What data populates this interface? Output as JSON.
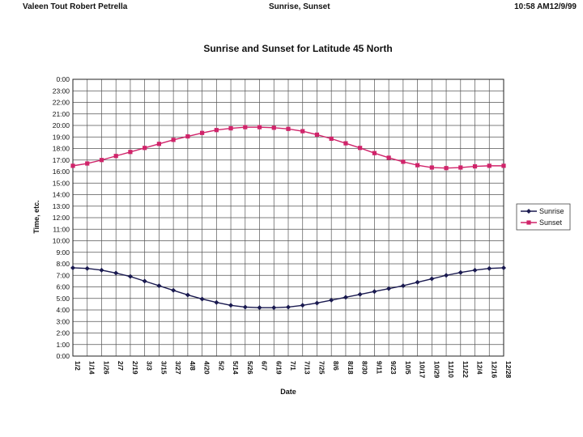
{
  "header": {
    "left": "Valeen Tout Robert Petrella",
    "center": "Sunrise, Sunset",
    "right": "10:58 AM12/9/99"
  },
  "chart_data": {
    "type": "line",
    "title": "Sunrise and Sunset for Latitude 45 North",
    "xlabel": "Date",
    "ylabel": "Time, etc.",
    "ylim": [
      0,
      24
    ],
    "yticks": [
      "0:00",
      "1:00",
      "2:00",
      "3:00",
      "4:00",
      "5:00",
      "6:00",
      "7:00",
      "8:00",
      "9:00",
      "10:00",
      "11:00",
      "12:00",
      "13:00",
      "14:00",
      "15:00",
      "16:00",
      "17:00",
      "18:00",
      "19:00",
      "20:00",
      "21:00",
      "22:00",
      "23:00",
      "0:00"
    ],
    "categories": [
      "1/2",
      "1/14",
      "1/26",
      "2/7",
      "2/19",
      "3/3",
      "3/15",
      "3/27",
      "4/8",
      "4/20",
      "5/2",
      "5/14",
      "5/26",
      "6/7",
      "6/19",
      "7/1",
      "7/13",
      "7/25",
      "8/6",
      "8/18",
      "8/30",
      "9/11",
      "9/23",
      "10/5",
      "10/17",
      "10/29",
      "11/10",
      "11/22",
      "12/4",
      "12/16",
      "12/28"
    ],
    "grid": true,
    "legend": "right",
    "series": [
      {
        "name": "Sunrise",
        "color": "#1a1a50",
        "marker": "diamond",
        "values": [
          7.65,
          7.6,
          7.45,
          7.2,
          6.9,
          6.5,
          6.1,
          5.7,
          5.3,
          4.95,
          4.65,
          4.4,
          4.25,
          4.2,
          4.2,
          4.25,
          4.4,
          4.6,
          4.85,
          5.1,
          5.35,
          5.6,
          5.85,
          6.1,
          6.4,
          6.7,
          7.0,
          7.25,
          7.45,
          7.6,
          7.65
        ]
      },
      {
        "name": "Sunset",
        "color": "#d0246a",
        "marker": "square",
        "values": [
          16.5,
          16.7,
          17.0,
          17.35,
          17.7,
          18.05,
          18.4,
          18.75,
          19.05,
          19.35,
          19.6,
          19.75,
          19.85,
          19.85,
          19.8,
          19.7,
          19.5,
          19.2,
          18.85,
          18.45,
          18.05,
          17.6,
          17.2,
          16.85,
          16.55,
          16.35,
          16.3,
          16.35,
          16.45,
          16.5,
          16.5
        ]
      }
    ]
  }
}
